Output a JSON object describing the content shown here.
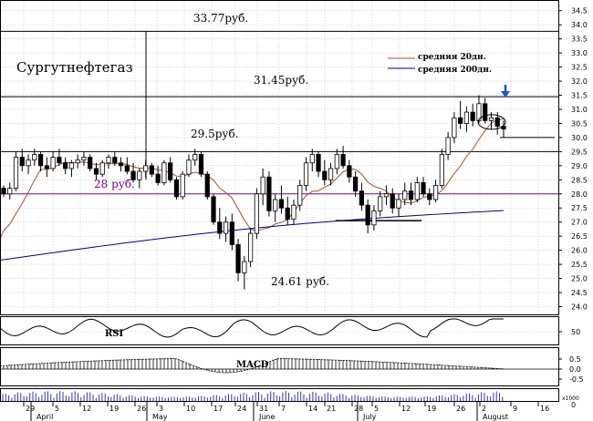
{
  "chart_data": {
    "type": "candlestick",
    "title": "Сургутнефтегаз",
    "ylim": [
      24.0,
      34.5
    ],
    "y_ticks": [
      "34.5",
      "34.0",
      "33.5",
      "33.0",
      "32.5",
      "32.0",
      "31.5",
      "31.0",
      "30.5",
      "30.0",
      "29.5",
      "29.0",
      "28.5",
      "28.0",
      "27.5",
      "27.0",
      "26.5",
      "26.0",
      "25.5",
      "25.0",
      "24.5",
      "24.0"
    ],
    "x_ticks": [
      "29",
      "5",
      "12",
      "19",
      "26",
      "3",
      "10",
      "17",
      "24",
      "31",
      "7",
      "14",
      "21",
      "28",
      "5",
      "12",
      "19",
      "26",
      "2",
      "9",
      "16"
    ],
    "months": [
      "April",
      "May",
      "June",
      "July",
      "August"
    ],
    "legend": [
      {
        "label": "средняя 20дн.",
        "color": "#a0522d"
      },
      {
        "label": "средняя 200дн.",
        "color": "#000080"
      }
    ],
    "levels": [
      {
        "value": 33.77,
        "label": "33.77руб.",
        "color": "#000000"
      },
      {
        "value": 31.45,
        "label": "31.45руб.",
        "color": "#000000"
      },
      {
        "value": 29.5,
        "label": "29.5руб.",
        "color": "#000000"
      },
      {
        "value": 28.0,
        "label": "28 руб.",
        "color": "#800080"
      }
    ],
    "annotations": [
      {
        "label": "24.61 руб.",
        "value": 24.61
      }
    ],
    "ohlc_approx": [
      [
        28.2,
        28.3,
        27.9,
        28.0
      ],
      [
        28.0,
        28.4,
        27.8,
        28.2
      ],
      [
        28.2,
        29.5,
        28.1,
        29.3
      ],
      [
        29.3,
        29.6,
        28.8,
        29.0
      ],
      [
        29.0,
        29.4,
        28.7,
        29.2
      ],
      [
        29.2,
        29.6,
        29.0,
        29.4
      ],
      [
        29.4,
        29.5,
        28.8,
        29.0
      ],
      [
        29.0,
        29.3,
        28.6,
        28.9
      ],
      [
        28.9,
        29.5,
        28.8,
        29.3
      ],
      [
        29.3,
        29.6,
        29.0,
        29.1
      ],
      [
        29.1,
        29.3,
        28.7,
        28.9
      ],
      [
        28.9,
        29.2,
        28.6,
        29.1
      ],
      [
        29.1,
        29.4,
        28.9,
        29.2
      ],
      [
        29.2,
        29.5,
        29.0,
        29.3
      ],
      [
        29.3,
        29.4,
        28.8,
        28.9
      ],
      [
        28.9,
        29.1,
        28.5,
        28.7
      ],
      [
        28.7,
        29.2,
        28.6,
        29.1
      ],
      [
        29.1,
        29.4,
        28.9,
        29.3
      ],
      [
        29.3,
        29.5,
        29.0,
        29.1
      ],
      [
        29.1,
        29.3,
        28.8,
        29.0
      ],
      [
        29.0,
        29.3,
        28.7,
        28.8
      ],
      [
        28.8,
        29.1,
        28.4,
        28.5
      ],
      [
        28.5,
        28.9,
        28.2,
        28.8
      ],
      [
        28.8,
        29.2,
        28.6,
        29.0
      ],
      [
        29.0,
        29.1,
        28.6,
        28.7
      ],
      [
        28.7,
        29.0,
        28.3,
        28.4
      ],
      [
        28.4,
        29.2,
        28.3,
        29.1
      ],
      [
        29.1,
        29.3,
        28.4,
        28.5
      ],
      [
        28.5,
        28.6,
        27.8,
        27.9
      ],
      [
        27.9,
        28.8,
        27.8,
        28.7
      ],
      [
        28.7,
        29.4,
        28.6,
        29.2
      ],
      [
        29.2,
        29.6,
        29.0,
        29.4
      ],
      [
        29.4,
        29.5,
        28.6,
        28.7
      ],
      [
        28.7,
        28.8,
        27.8,
        27.9
      ],
      [
        27.9,
        28.0,
        26.9,
        27.0
      ],
      [
        27.0,
        27.5,
        26.4,
        26.6
      ],
      [
        26.6,
        27.2,
        26.3,
        27.0
      ],
      [
        27.0,
        27.3,
        26.0,
        26.2
      ],
      [
        26.2,
        26.4,
        24.9,
        25.2
      ],
      [
        25.2,
        25.8,
        24.61,
        25.6
      ],
      [
        25.6,
        26.8,
        25.4,
        26.6
      ],
      [
        26.6,
        28.2,
        26.4,
        28.0
      ],
      [
        28.0,
        28.9,
        27.6,
        28.6
      ],
      [
        28.6,
        28.8,
        27.2,
        27.4
      ],
      [
        27.4,
        28.0,
        27.0,
        27.8
      ],
      [
        27.8,
        28.3,
        27.3,
        27.5
      ],
      [
        27.5,
        27.9,
        26.9,
        27.1
      ],
      [
        27.1,
        27.8,
        26.9,
        27.6
      ],
      [
        27.6,
        28.5,
        27.4,
        28.3
      ],
      [
        28.3,
        29.3,
        28.1,
        29.1
      ],
      [
        29.1,
        29.6,
        28.8,
        29.4
      ],
      [
        29.4,
        29.5,
        28.6,
        28.8
      ],
      [
        28.8,
        29.2,
        28.3,
        28.5
      ],
      [
        28.5,
        29.1,
        28.3,
        28.9
      ],
      [
        28.9,
        29.6,
        28.7,
        29.4
      ],
      [
        29.4,
        29.7,
        28.9,
        29.0
      ],
      [
        29.0,
        29.2,
        28.4,
        28.6
      ],
      [
        28.6,
        28.8,
        27.9,
        28.1
      ],
      [
        28.1,
        28.4,
        27.4,
        27.6
      ],
      [
        27.6,
        27.8,
        26.6,
        26.9
      ],
      [
        26.9,
        27.6,
        26.7,
        27.4
      ],
      [
        27.4,
        28.1,
        27.2,
        27.9
      ],
      [
        27.9,
        28.3,
        27.6,
        28.0
      ],
      [
        28.0,
        28.2,
        27.3,
        27.5
      ],
      [
        27.5,
        28.0,
        27.2,
        27.8
      ],
      [
        27.8,
        28.4,
        27.6,
        28.1
      ],
      [
        28.1,
        28.4,
        27.6,
        27.8
      ],
      [
        27.8,
        28.6,
        27.7,
        28.4
      ],
      [
        28.4,
        28.6,
        27.9,
        28.0
      ],
      [
        28.0,
        28.2,
        27.6,
        27.8
      ],
      [
        27.8,
        28.5,
        27.7,
        28.3
      ],
      [
        28.3,
        29.6,
        28.2,
        29.4
      ],
      [
        29.4,
        30.2,
        29.2,
        30.0
      ],
      [
        30.0,
        30.9,
        29.8,
        30.7
      ],
      [
        30.7,
        31.3,
        30.3,
        30.5
      ],
      [
        30.5,
        31.1,
        30.2,
        30.9
      ],
      [
        30.9,
        31.2,
        30.4,
        30.6
      ],
      [
        30.6,
        31.5,
        30.5,
        31.2
      ],
      [
        31.2,
        31.4,
        30.5,
        30.6
      ],
      [
        30.6,
        30.9,
        30.3,
        30.7
      ],
      [
        30.7,
        30.9,
        30.1,
        30.4
      ],
      [
        30.4,
        30.6,
        30.0,
        30.3
      ]
    ],
    "indicators": {
      "rsi": {
        "label": "RSI",
        "ref": "50"
      },
      "macd": {
        "label": "MACD",
        "ticks": [
          "0.5",
          "0.0",
          "-0.5"
        ]
      },
      "volume": {
        "tick": "x1000",
        "ref": "0"
      }
    },
    "grid": true
  }
}
